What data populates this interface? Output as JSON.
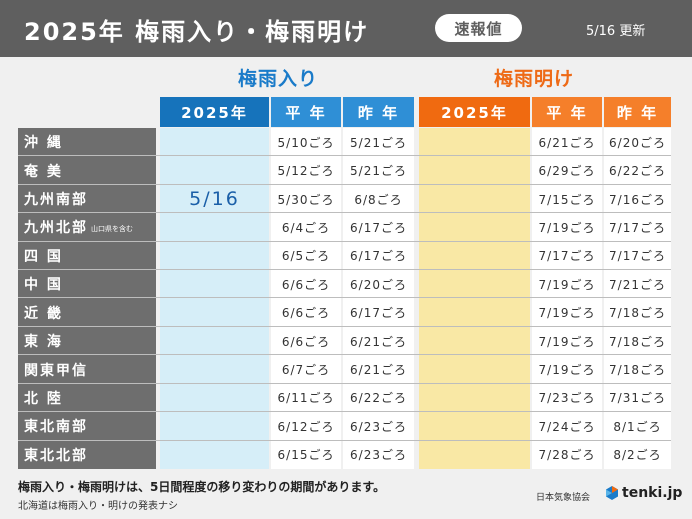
{
  "header": {
    "title": "2025年 梅雨入り・梅雨明け",
    "badge": "速報値",
    "date": "5/16 更新"
  },
  "sections": {
    "tsuyu_iri": "梅雨入り",
    "tsuyu_ake": "梅雨明け"
  },
  "columns": {
    "in_2025": "2025年",
    "in_normal": "平 年",
    "in_last": "昨 年",
    "out_2025": "2025年",
    "out_normal": "平 年",
    "out_last": "昨 年"
  },
  "rows": [
    {
      "region": "沖 縄",
      "note": "",
      "in_2025": "",
      "in_normal": "5/10ごろ",
      "in_last": "5/21ごろ",
      "out_2025": "",
      "out_normal": "6/21ごろ",
      "out_last": "6/20ごろ"
    },
    {
      "region": "奄 美",
      "note": "",
      "in_2025": "",
      "in_normal": "5/12ごろ",
      "in_last": "5/21ごろ",
      "out_2025": "",
      "out_normal": "6/29ごろ",
      "out_last": "6/22ごろ"
    },
    {
      "region": "九州南部",
      "note": "",
      "in_2025": "5/16",
      "in_normal": "5/30ごろ",
      "in_last": "6/8ごろ",
      "out_2025": "",
      "out_normal": "7/15ごろ",
      "out_last": "7/16ごろ"
    },
    {
      "region": "九州北部",
      "note": "山口県を含む",
      "in_2025": "",
      "in_normal": "6/4ごろ",
      "in_last": "6/17ごろ",
      "out_2025": "",
      "out_normal": "7/19ごろ",
      "out_last": "7/17ごろ"
    },
    {
      "region": "四 国",
      "note": "",
      "in_2025": "",
      "in_normal": "6/5ごろ",
      "in_last": "6/17ごろ",
      "out_2025": "",
      "out_normal": "7/17ごろ",
      "out_last": "7/17ごろ"
    },
    {
      "region": "中 国",
      "note": "",
      "in_2025": "",
      "in_normal": "6/6ごろ",
      "in_last": "6/20ごろ",
      "out_2025": "",
      "out_normal": "7/19ごろ",
      "out_last": "7/21ごろ"
    },
    {
      "region": "近 畿",
      "note": "",
      "in_2025": "",
      "in_normal": "6/6ごろ",
      "in_last": "6/17ごろ",
      "out_2025": "",
      "out_normal": "7/19ごろ",
      "out_last": "7/18ごろ"
    },
    {
      "region": "東 海",
      "note": "",
      "in_2025": "",
      "in_normal": "6/6ごろ",
      "in_last": "6/21ごろ",
      "out_2025": "",
      "out_normal": "7/19ごろ",
      "out_last": "7/18ごろ"
    },
    {
      "region": "関東甲信",
      "note": "",
      "in_2025": "",
      "in_normal": "6/7ごろ",
      "in_last": "6/21ごろ",
      "out_2025": "",
      "out_normal": "7/19ごろ",
      "out_last": "7/18ごろ"
    },
    {
      "region": "北 陸",
      "note": "",
      "in_2025": "",
      "in_normal": "6/11ごろ",
      "in_last": "6/22ごろ",
      "out_2025": "",
      "out_normal": "7/23ごろ",
      "out_last": "7/31ごろ"
    },
    {
      "region": "東北南部",
      "note": "",
      "in_2025": "",
      "in_normal": "6/12ごろ",
      "in_last": "6/23ごろ",
      "out_2025": "",
      "out_normal": "7/24ごろ",
      "out_last": "8/1ごろ"
    },
    {
      "region": "東北北部",
      "note": "",
      "in_2025": "",
      "in_normal": "6/15ごろ",
      "in_last": "6/23ごろ",
      "out_2025": "",
      "out_normal": "7/28ごろ",
      "out_last": "8/2ごろ"
    }
  ],
  "footer": {
    "note1": "梅雨入り・梅雨明けは、5日間程度の移り変わりの期間があります。",
    "note2": "北海道は梅雨入り・明けの発表ナシ",
    "source": "日本気象協会",
    "brand": "tenki.jp"
  },
  "colors": {
    "header_bg": "#5f5f5f",
    "tsuyu_iri_blue": "#1673bb",
    "tsuyu_ake_orange": "#f06a10",
    "region_bg": "#6e6e6e",
    "in_2025_bg": "#d6eef8",
    "out_2025_bg": "#f9e8a5"
  }
}
